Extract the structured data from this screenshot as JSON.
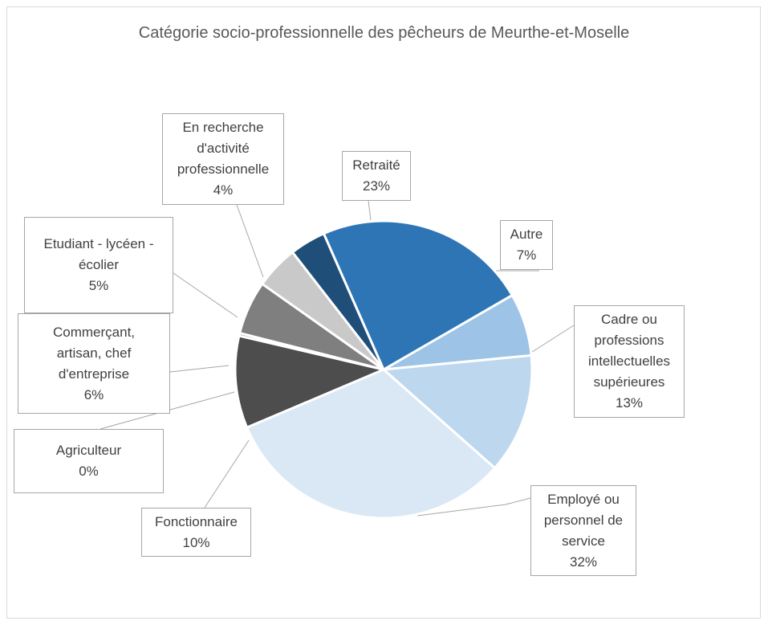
{
  "chart_data": {
    "type": "pie",
    "title": "Catégorie socio-professionnelle des pêcheurs de Meurthe-et-Moselle",
    "slices": [
      {
        "name": "Autre",
        "percent_label": "7%",
        "value": 6.8,
        "color": "#9dc3e6"
      },
      {
        "name": "Cadre ou\nprofessions\nintellectuelles\nsupérieures",
        "percent_label": "13%",
        "value": 13,
        "color": "#bdd7ee"
      },
      {
        "name": "Employé ou\npersonnel de\nservice",
        "percent_label": "32%",
        "value": 32,
        "color": "#dae8f5"
      },
      {
        "name": "Fonctionnaire",
        "percent_label": "10%",
        "value": 10,
        "color": "#4d4d4d"
      },
      {
        "name": "Agriculteur",
        "percent_label": "0%",
        "value": 0.3,
        "color": "#5f5f5f"
      },
      {
        "name": "Commerçant,\nartisan, chef\nd'entreprise",
        "percent_label": "6%",
        "value": 5.8,
        "color": "#7f7f7f"
      },
      {
        "name": "Etudiant - lycéen -\nécolier",
        "percent_label": "5%",
        "value": 4.7,
        "color": "#c9c9c9"
      },
      {
        "name": "En recherche\nd'activité\nprofessionnelle",
        "percent_label": "4%",
        "value": 3.9,
        "color": "#1f4e79"
      },
      {
        "name": "Retraité",
        "percent_label": "23%",
        "value": 23.2,
        "color": "#2e75b6"
      }
    ],
    "start_angle_deg": 60,
    "direction": "clockwise"
  }
}
